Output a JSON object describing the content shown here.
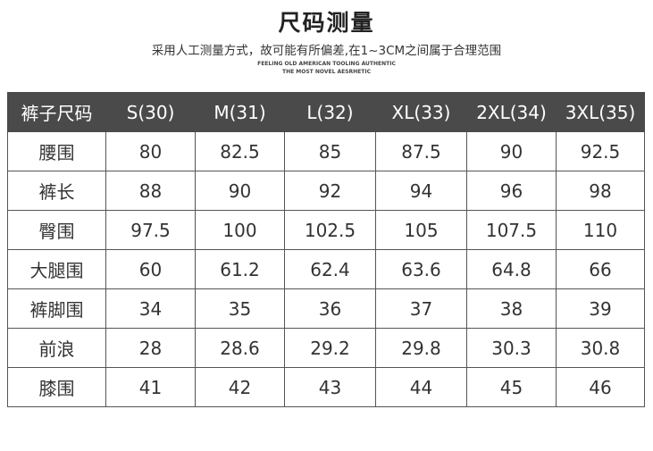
{
  "header": {
    "title": "尺码测量",
    "subtitle": "采用人工测量方式，故可能有所偏差,在1~3CM之间属于合理范围",
    "tagline1": "FEELING OLD AMERICAN TOOLING AUTHENTIC",
    "tagline2": "THE MOST NOVEL AESRHETIC"
  },
  "table": {
    "columns": [
      "裤子尺码",
      "S(30)",
      "M(31)",
      "L(32)",
      "XL(33)",
      "2XL(34)",
      "3XL(35)"
    ],
    "rows": [
      [
        "腰围",
        "80",
        "82.5",
        "85",
        "87.5",
        "90",
        "92.5"
      ],
      [
        "裤长",
        "88",
        "90",
        "92",
        "94",
        "96",
        "98"
      ],
      [
        "臀围",
        "97.5",
        "100",
        "102.5",
        "105",
        "107.5",
        "110"
      ],
      [
        "大腿围",
        "60",
        "61.2",
        "62.4",
        "63.6",
        "64.8",
        "66"
      ],
      [
        "裤脚围",
        "34",
        "35",
        "36",
        "37",
        "38",
        "39"
      ],
      [
        "前浪",
        "28",
        "28.6",
        "29.2",
        "29.8",
        "30.3",
        "30.8"
      ],
      [
        "膝围",
        "41",
        "42",
        "43",
        "44",
        "45",
        "46"
      ]
    ]
  }
}
